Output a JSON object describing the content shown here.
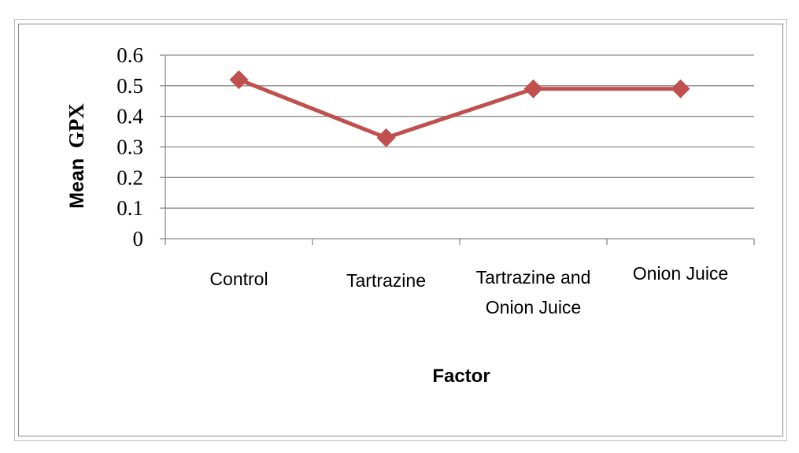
{
  "chart_data": {
    "type": "line",
    "categories": [
      "Control",
      "Tartrazine",
      "Tartrazine and Onion Juice",
      "Onion Juice"
    ],
    "category_lines": [
      [
        "Control"
      ],
      [
        "Tartrazine"
      ],
      [
        "Tartrazine and",
        "Onion Juice"
      ],
      [
        "Onion Juice"
      ]
    ],
    "series": [
      {
        "values": [
          0.52,
          0.33,
          0.49,
          0.49
        ],
        "color": "#c0504d",
        "marker": "diamond"
      }
    ],
    "yticks": [
      "0",
      "0.1",
      "0.2",
      "0.3",
      "0.4",
      "0.5",
      "0.6"
    ],
    "ylim": [
      0,
      0.6
    ],
    "ylabel_part1": "Mean",
    "ylabel_part2": "GPX",
    "xlabel": "Factor",
    "grid": true,
    "legend": "none"
  }
}
